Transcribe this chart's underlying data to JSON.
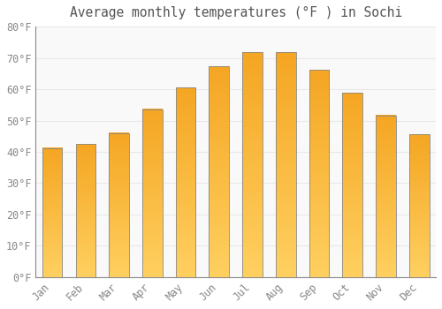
{
  "title": "Average monthly temperatures (°F ) in Sochi",
  "months": [
    "Jan",
    "Feb",
    "Mar",
    "Apr",
    "May",
    "Jun",
    "Jul",
    "Aug",
    "Sep",
    "Oct",
    "Nov",
    "Dec"
  ],
  "values": [
    41.2,
    42.4,
    46.0,
    53.6,
    60.6,
    67.3,
    71.8,
    71.8,
    66.2,
    58.8,
    51.6,
    45.5
  ],
  "bar_color_top": "#F5A623",
  "bar_color_bottom": "#FFD060",
  "bar_edge_color": "#888888",
  "background_color": "#ffffff",
  "plot_bg_color": "#f9f9f9",
  "grid_color": "#e8e8e8",
  "tick_label_color": "#888888",
  "title_color": "#555555",
  "ylim": [
    0,
    80
  ],
  "yticks": [
    0,
    10,
    20,
    30,
    40,
    50,
    60,
    70,
    80
  ],
  "ytick_labels": [
    "0°F",
    "10°F",
    "20°F",
    "30°F",
    "40°F",
    "50°F",
    "60°F",
    "70°F",
    "80°F"
  ],
  "font_family": "monospace",
  "title_fontsize": 10.5,
  "tick_fontsize": 8.5,
  "bar_width": 0.6,
  "gradient_steps": 100
}
